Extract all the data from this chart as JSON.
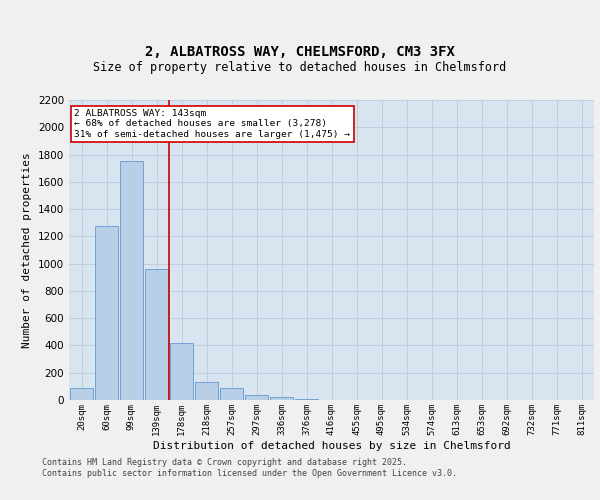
{
  "title_line1": "2, ALBATROSS WAY, CHELMSFORD, CM3 3FX",
  "title_line2": "Size of property relative to detached houses in Chelmsford",
  "xlabel": "Distribution of detached houses by size in Chelmsford",
  "ylabel": "Number of detached properties",
  "categories": [
    "20sqm",
    "60sqm",
    "99sqm",
    "139sqm",
    "178sqm",
    "218sqm",
    "257sqm",
    "297sqm",
    "336sqm",
    "376sqm",
    "416sqm",
    "455sqm",
    "495sqm",
    "534sqm",
    "574sqm",
    "613sqm",
    "653sqm",
    "692sqm",
    "732sqm",
    "771sqm",
    "811sqm"
  ],
  "values": [
    90,
    1275,
    1750,
    960,
    415,
    135,
    85,
    35,
    20,
    10,
    0,
    0,
    0,
    0,
    0,
    0,
    0,
    0,
    0,
    0,
    0
  ],
  "bar_color": "#b8cfe8",
  "bar_edge_color": "#6699cc",
  "grid_color": "#c0cfe0",
  "background_color": "#d8e4f0",
  "annotation_text": "2 ALBATROSS WAY: 143sqm\n← 68% of detached houses are smaller (3,278)\n31% of semi-detached houses are larger (1,475) →",
  "red_line_x": 3.5,
  "annotation_box_color": "#ffffff",
  "annotation_border_color": "#cc0000",
  "ylim": [
    0,
    2200
  ],
  "yticks": [
    0,
    200,
    400,
    600,
    800,
    1000,
    1200,
    1400,
    1600,
    1800,
    2000,
    2200
  ],
  "fig_bg": "#f0f0f0",
  "footer_line1": "Contains HM Land Registry data © Crown copyright and database right 2025.",
  "footer_line2": "Contains public sector information licensed under the Open Government Licence v3.0."
}
